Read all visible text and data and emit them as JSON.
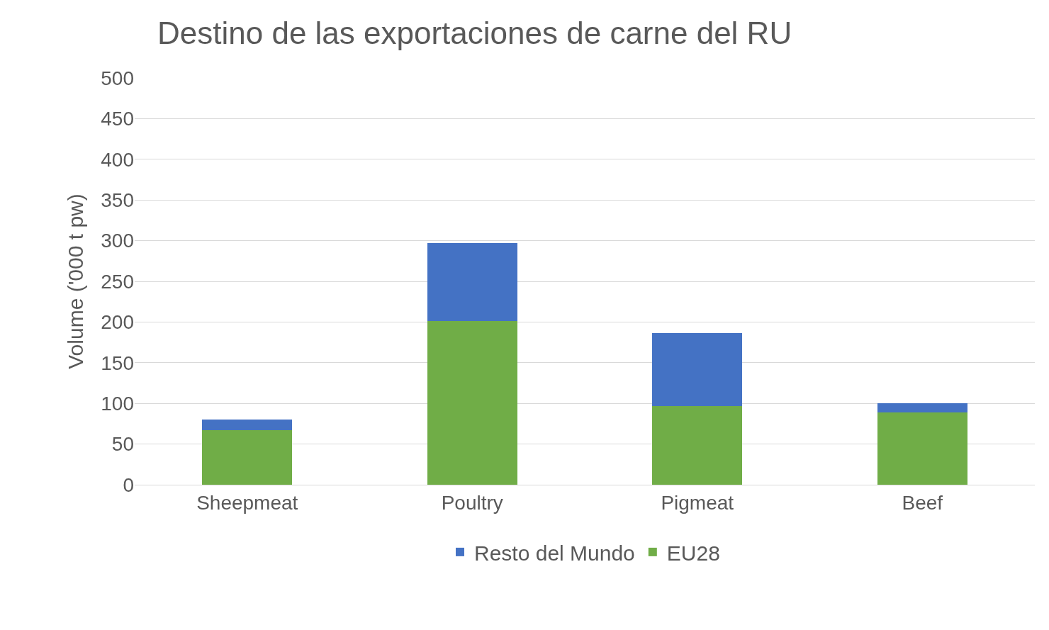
{
  "chart_data": {
    "type": "bar",
    "title": "Destino de las exportaciones de carne del RU",
    "ylabel": "Volume ('000 t pw)",
    "categories": [
      "Sheepmeat",
      "Poultry",
      "Pigmeat",
      "Beef"
    ],
    "series": [
      {
        "name": "EU28",
        "color": "#70ad47",
        "values": [
          67,
          201,
          97,
          89
        ]
      },
      {
        "name": "Resto del Mundo",
        "color": "#4472c4",
        "values": [
          13,
          96,
          89,
          11
        ]
      }
    ],
    "stacked": true,
    "ylim": [
      0,
      500
    ],
    "yticks": [
      0,
      50,
      100,
      150,
      200,
      250,
      300,
      350,
      400,
      450,
      500
    ],
    "grid": "y",
    "legend": "bottom"
  }
}
